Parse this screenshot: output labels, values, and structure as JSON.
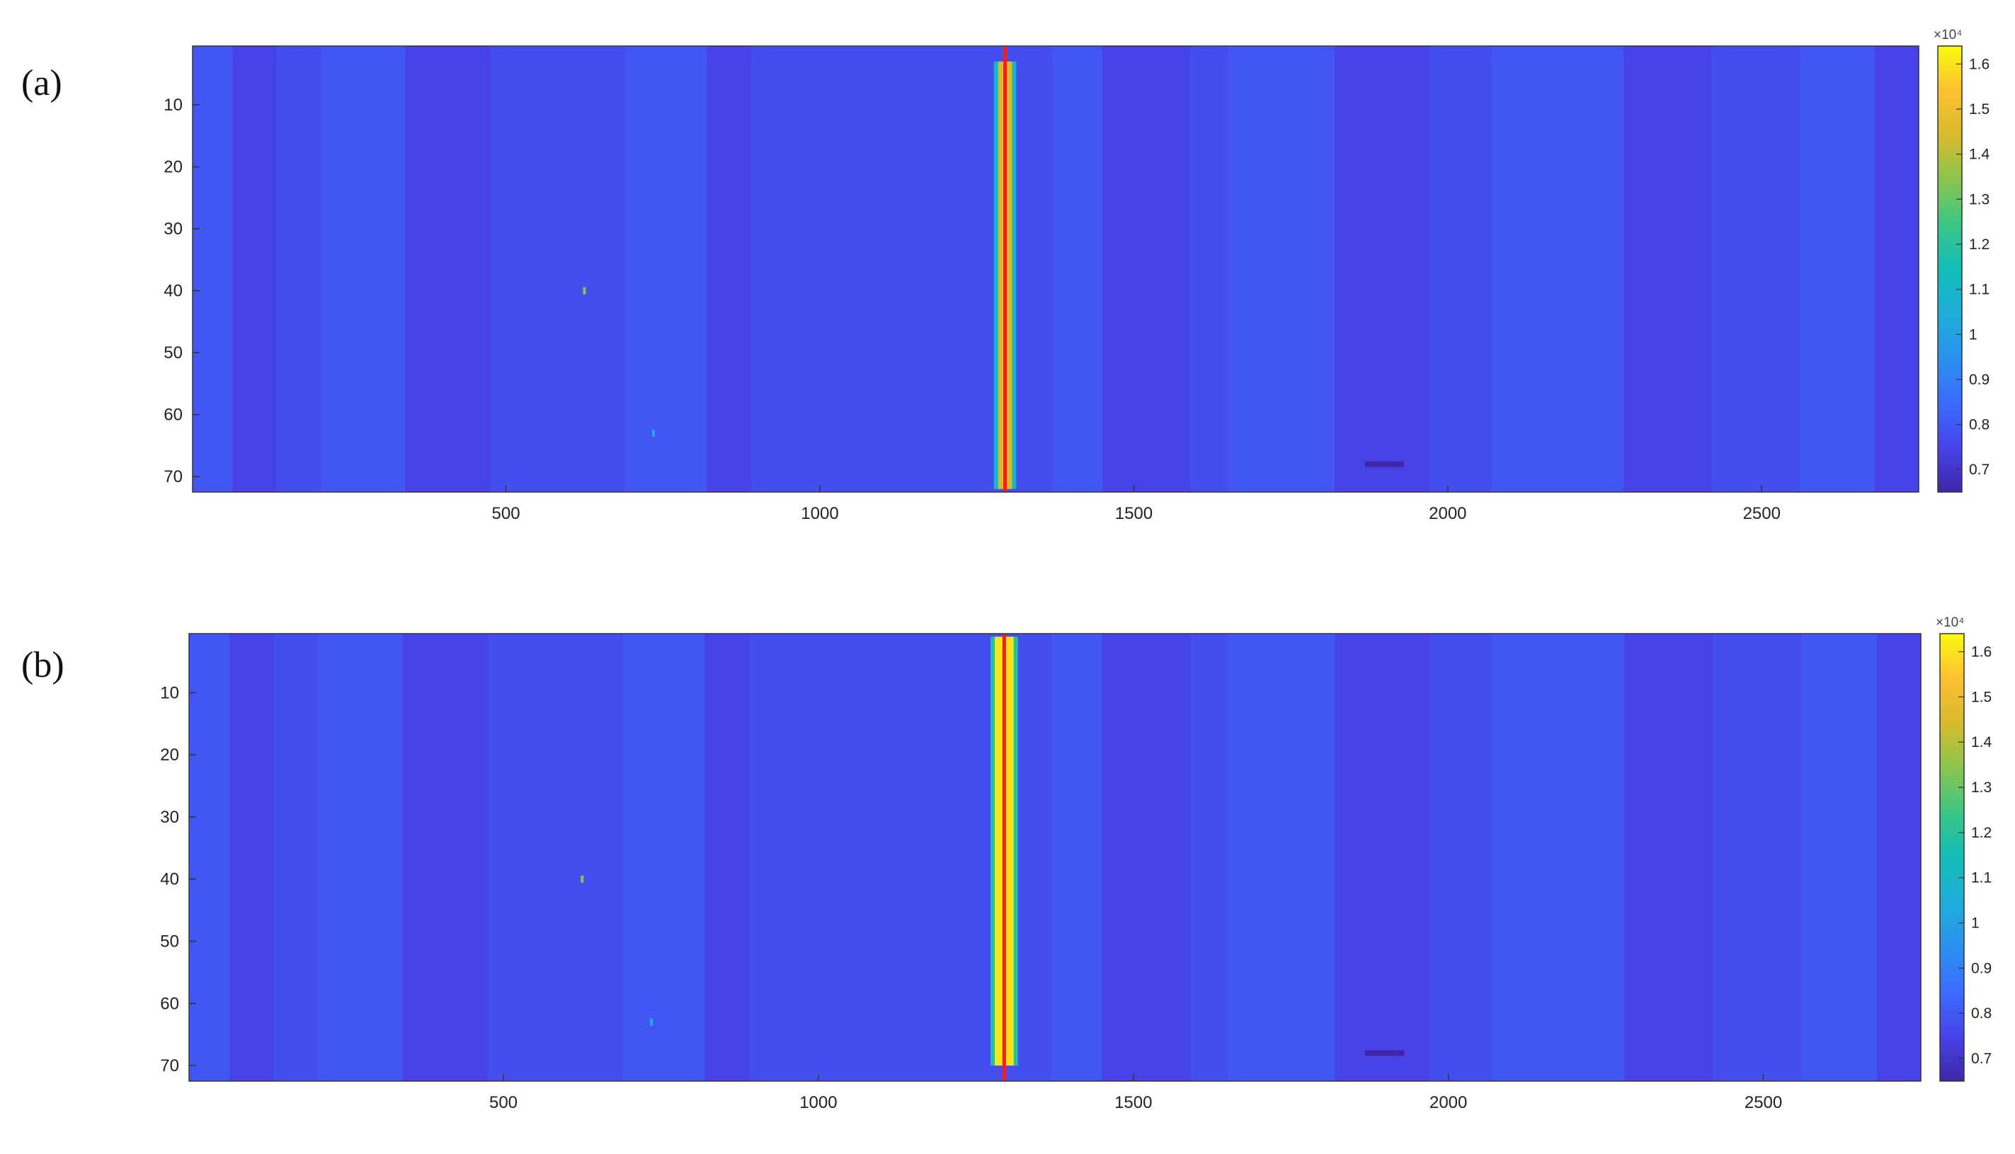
{
  "panels": [
    {
      "label": "(a)"
    },
    {
      "label": "(b)"
    }
  ],
  "colors": {
    "background_field": "#2f5ce0",
    "marker_line": "#ff1a1a",
    "colormap": [
      "#3e26a8",
      "#4743e9",
      "#3b6cfd",
      "#2b91ef",
      "#1fadda",
      "#12bdb7",
      "#3bc685",
      "#8ac54f",
      "#d8ba2d",
      "#fdc032",
      "#f9fb0e"
    ]
  },
  "chart_data": [
    {
      "type": "heatmap",
      "panel": "(a)",
      "title": "",
      "xlabel": "",
      "ylabel": "",
      "xlim": [
        1,
        2750
      ],
      "ylim": [
        72.5,
        0.5
      ],
      "x_ticks": [
        500,
        1000,
        1500,
        2000,
        2500
      ],
      "y_ticks": [
        10,
        20,
        30,
        40,
        50,
        60,
        70
      ],
      "colorbar": {
        "range": [
          6500,
          16400
        ],
        "ticks": [
          0.7,
          0.8,
          0.9,
          1,
          1.1,
          1.2,
          1.3,
          1.4,
          1.5,
          1.6
        ],
        "exponent_label": "×10⁴"
      },
      "background_level": 7600,
      "band_edges_x": [
        65,
        135,
        205,
        340,
        475,
        690,
        820,
        890,
        1370,
        1450,
        1590,
        1650,
        1820,
        1970,
        2070,
        2280,
        2420,
        2560,
        2680
      ],
      "marker_line_x": 1295,
      "bright_stripe": {
        "x_center": 1295,
        "width": 22,
        "peak_level": 14500,
        "y_start": 3,
        "y_end": 72
      },
      "small_features": [
        {
          "x": 625,
          "y": 40,
          "level": 13500
        },
        {
          "x": 735,
          "y": 63,
          "level": 10500
        },
        {
          "x_start": 1868,
          "x_end": 1930,
          "y": 68,
          "level": 6500
        }
      ]
    },
    {
      "type": "heatmap",
      "panel": "(b)",
      "title": "",
      "xlabel": "",
      "ylabel": "",
      "xlim": [
        1,
        2750
      ],
      "ylim": [
        72.5,
        0.5
      ],
      "x_ticks": [
        500,
        1000,
        1500,
        2000,
        2500
      ],
      "y_ticks": [
        10,
        20,
        30,
        40,
        50,
        60,
        70
      ],
      "colorbar": {
        "range": [
          6500,
          16400
        ],
        "ticks": [
          0.7,
          0.8,
          0.9,
          1,
          1.1,
          1.2,
          1.3,
          1.4,
          1.5,
          1.6
        ],
        "exponent_label": "×10⁴"
      },
      "background_level": 7600,
      "band_edges_x": [
        65,
        135,
        205,
        340,
        475,
        690,
        820,
        890,
        1370,
        1450,
        1590,
        1650,
        1820,
        1970,
        2070,
        2280,
        2420,
        2560,
        2680
      ],
      "marker_line_x": 1295,
      "bright_stripe": {
        "x_center": 1295,
        "width": 30,
        "peak_level": 16000,
        "y_start": 1,
        "y_end": 70
      },
      "small_features": [
        {
          "x": 625,
          "y": 40,
          "level": 13500
        },
        {
          "x": 735,
          "y": 63,
          "level": 10500
        },
        {
          "x_start": 1868,
          "x_end": 1930,
          "y": 68,
          "level": 6500
        }
      ]
    }
  ]
}
